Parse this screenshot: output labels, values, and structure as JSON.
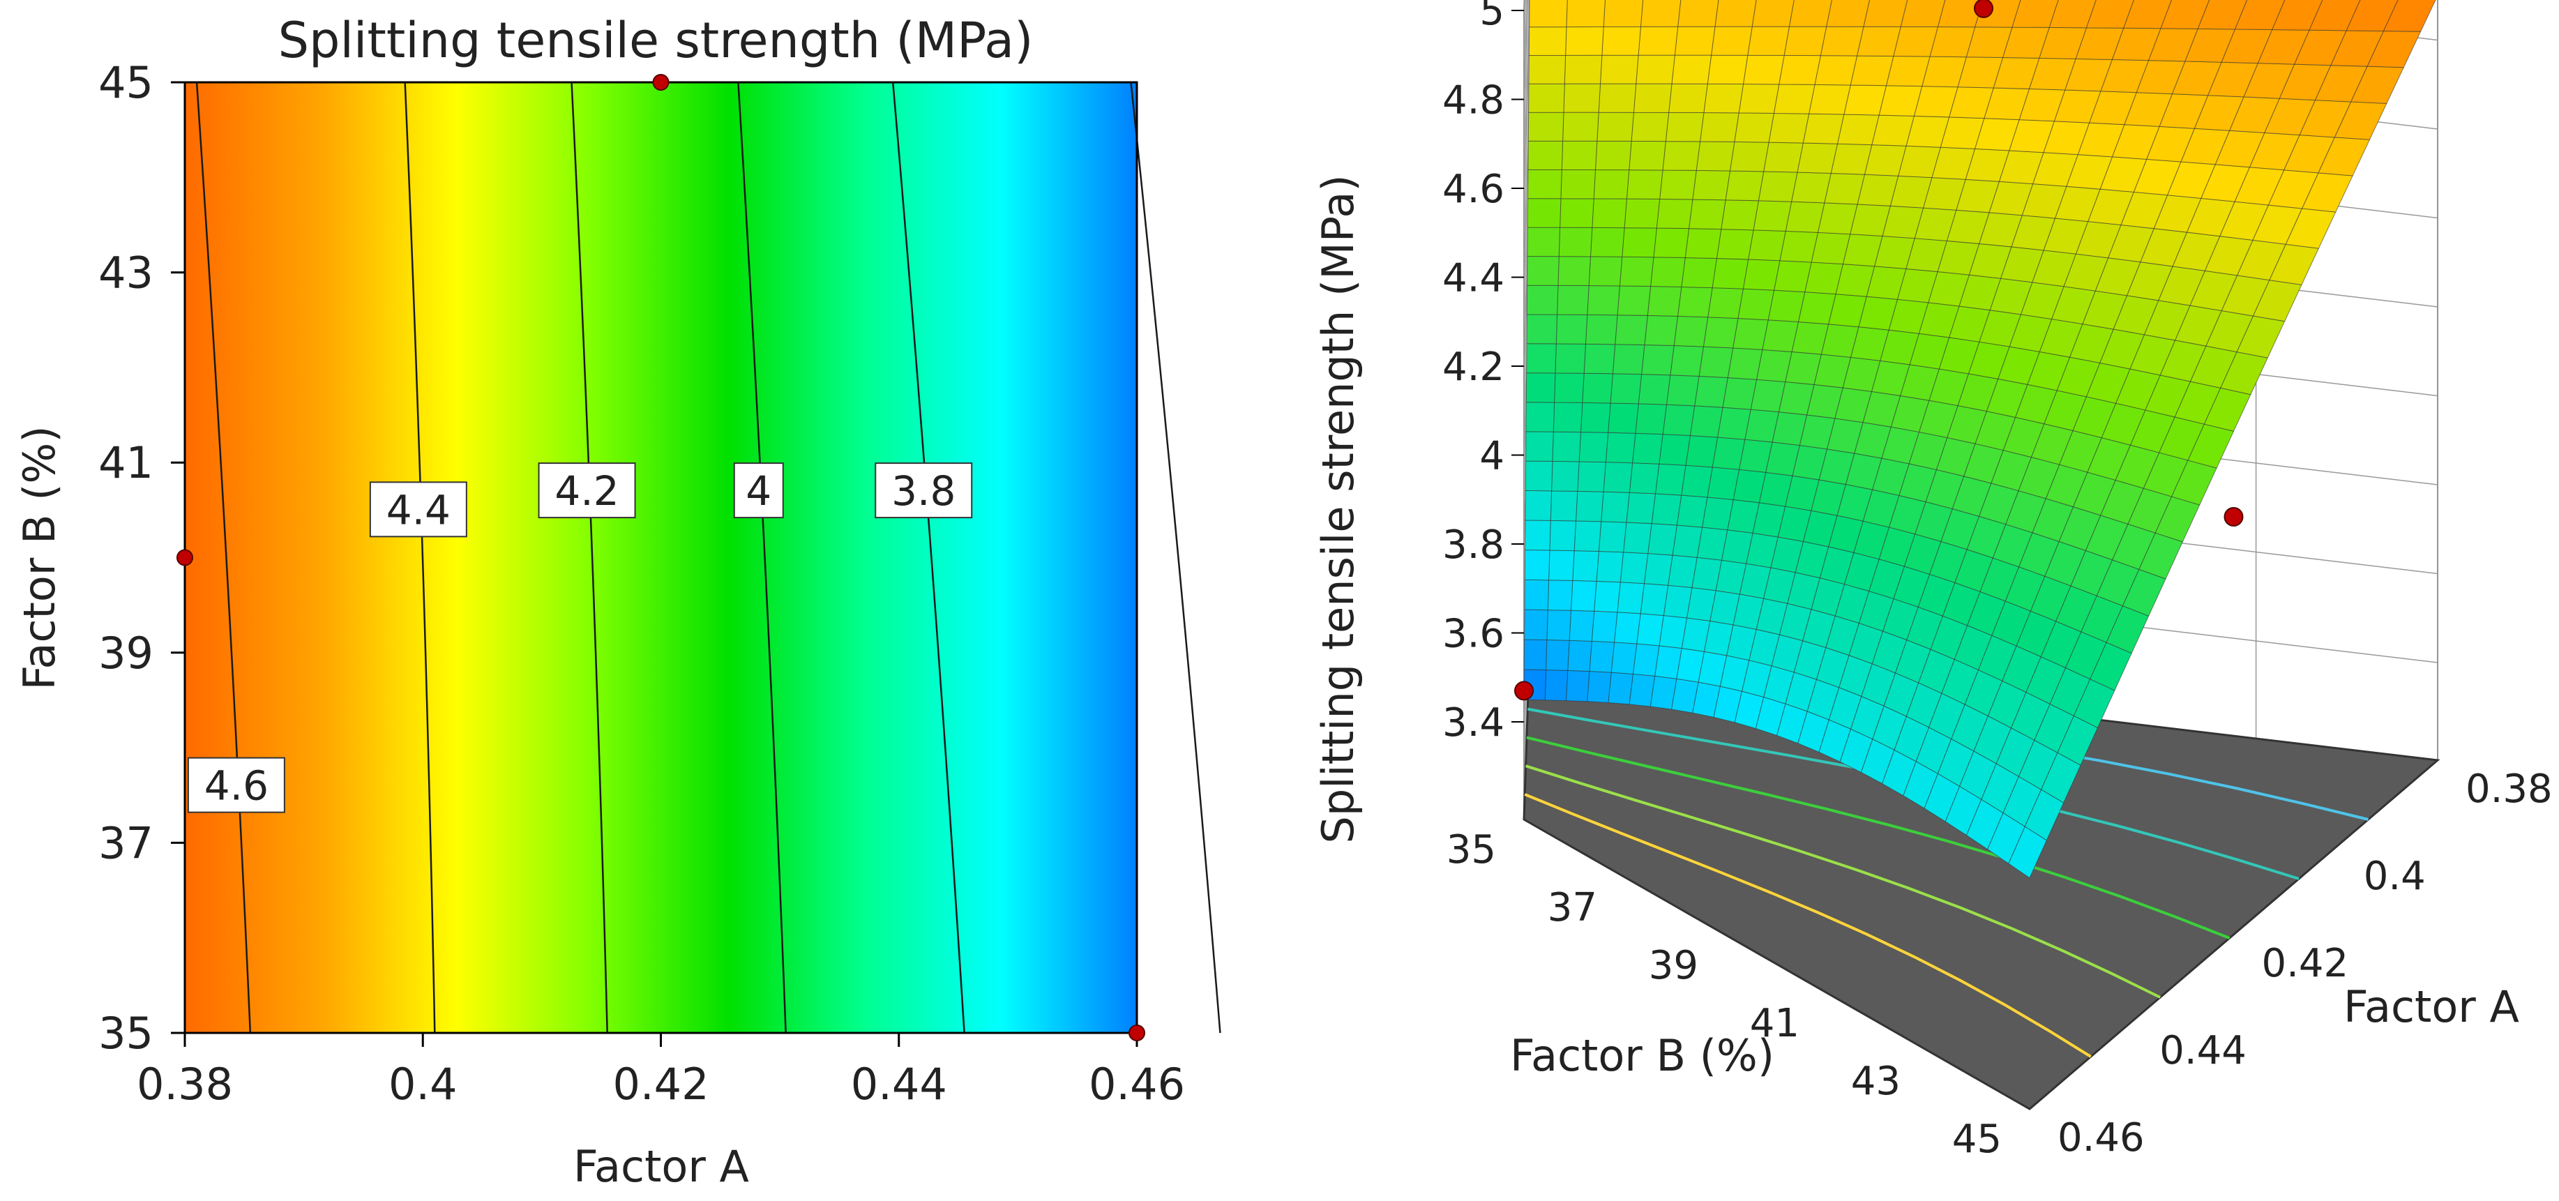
{
  "chart_data": [
    {
      "type": "contour",
      "title": "Splitting tensile strength (MPa)",
      "xlabel": "Factor A",
      "ylabel": "Factor B (%)",
      "xlim": [
        0.38,
        0.46
      ],
      "ylim": [
        35,
        45
      ],
      "x_ticks": [
        "0.38",
        "0.4",
        "0.42",
        "0.44",
        "0.46"
      ],
      "y_ticks": [
        "35",
        "37",
        "39",
        "41",
        "43",
        "45"
      ],
      "colormap": [
        "#ff6a00",
        "#ffa500",
        "#ffff00",
        "#80ff00",
        "#00e000",
        "#00ff90",
        "#00ffff",
        "#0080ff"
      ],
      "contour_levels": [
        {
          "level": 4.6,
          "label": "4.6",
          "x_at_b35": 0.3855,
          "x_at_b45": 0.381
        },
        {
          "level": 4.4,
          "label": "4.4",
          "x_at_b35": 0.401,
          "x_at_b45": 0.3985
        },
        {
          "level": 4.2,
          "label": "4.2",
          "x_at_b35": 0.4155,
          "x_at_b45": 0.4125
        },
        {
          "level": 4.0,
          "label": "4",
          "x_at_b35": 0.4305,
          "x_at_b45": 0.4265
        },
        {
          "level": 3.8,
          "label": "3.8",
          "x_at_b35": 0.4455,
          "x_at_b45": 0.4395
        },
        {
          "level": 3.6,
          "label": "",
          "x_at_b35": 0.467,
          "x_at_b45": 0.4595
        }
      ],
      "label_positions": [
        {
          "label": "4.6",
          "factor_b": 37.6
        },
        {
          "label": "4.4",
          "factor_b": 40.5
        },
        {
          "label": "4.2",
          "factor_b": 40.7
        },
        {
          "label": "4",
          "factor_b": 40.7
        },
        {
          "label": "3.8",
          "factor_b": 40.7
        }
      ],
      "design_points": [
        {
          "factor_a": 0.42,
          "factor_b": 45
        },
        {
          "factor_a": 0.38,
          "factor_b": 40
        },
        {
          "factor_a": 0.46,
          "factor_b": 35
        }
      ]
    },
    {
      "type": "surface3d",
      "zlabel": "Splitting tensile strength (MPa)",
      "xlabel": "Factor A",
      "ylabel": "Factor B (%)",
      "zlim": [
        3.4,
        5
      ],
      "z_ticks": [
        "3.4",
        "3.6",
        "3.8",
        "4",
        "4.2",
        "4.4",
        "4.6",
        "4.8",
        "5"
      ],
      "factor_a_ticks": [
        "0.38",
        "0.4",
        "0.42",
        "0.44",
        "0.46"
      ],
      "factor_b_ticks": [
        "35",
        "37",
        "39",
        "41",
        "43",
        "45"
      ],
      "surface_corners": [
        {
          "factor_a": 0.38,
          "factor_b": 35,
          "z": 4.7
        },
        {
          "factor_a": 0.38,
          "factor_b": 45,
          "z": 4.95
        },
        {
          "factor_a": 0.46,
          "factor_b": 35,
          "z": 3.45
        },
        {
          "factor_a": 0.46,
          "factor_b": 45,
          "z": 3.7
        }
      ],
      "design_points": [
        {
          "factor_a": 0.38,
          "factor_b": 40,
          "z": 4.75
        },
        {
          "factor_a": 0.42,
          "factor_b": 45,
          "z": 4.12
        },
        {
          "factor_a": 0.46,
          "factor_b": 35,
          "z": 3.47
        }
      ],
      "floor_contour_colors": [
        "#ffd43b",
        "#9be04a",
        "#3ccf3c",
        "#33c7b8",
        "#4fc3e8"
      ]
    }
  ]
}
